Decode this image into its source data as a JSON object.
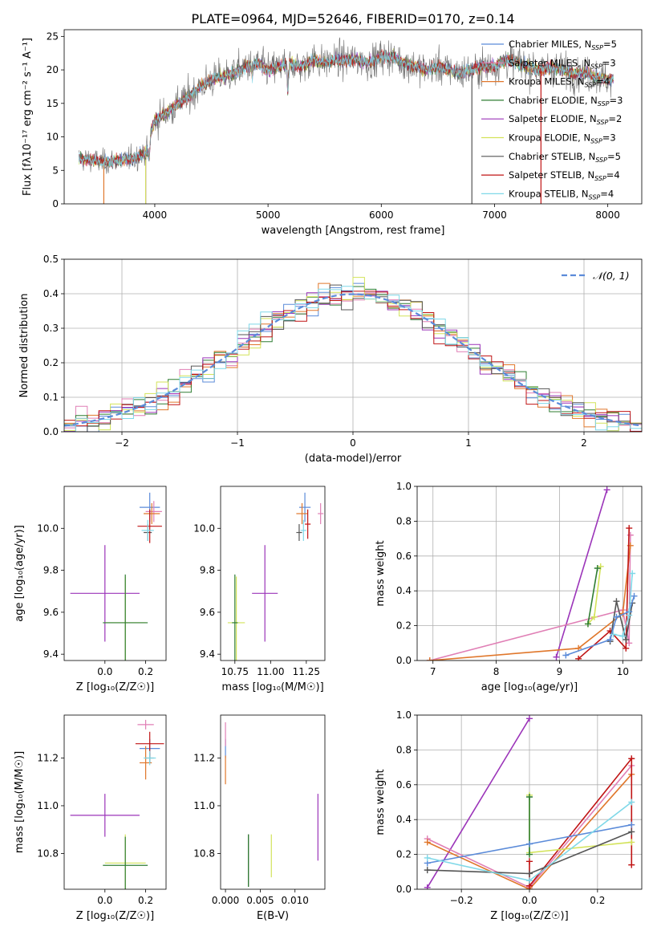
{
  "figure": {
    "title": "PLATE=0964, MJD=52646, FIBERID=0170, z=0.14"
  },
  "chart_data": [
    {
      "id": "spectrum",
      "type": "line",
      "xlabel": "wavelength [Angstrom, rest frame]",
      "ylabel": "Flux [fλ10⁻¹⁷ erg cm⁻² s⁻¹ A⁻¹]",
      "xlim": [
        3200,
        8300
      ],
      "ylim": [
        0,
        26
      ],
      "xticks": [
        4000,
        5000,
        6000,
        7000,
        8000
      ],
      "yticks": [
        0,
        5,
        10,
        15,
        20,
        25
      ],
      "grid": false,
      "legend": "right",
      "continuum": {
        "x": [
          3330,
          3450,
          3550,
          3650,
          3750,
          3850,
          3930,
          3960,
          4000,
          4100,
          4200,
          4300,
          4400,
          4500,
          4600,
          4700,
          4800,
          4900,
          5000,
          5100,
          5200,
          5300,
          5400,
          5500,
          5600,
          5700,
          5800,
          5900,
          6000,
          6100,
          6200,
          6300,
          6400,
          6500,
          6600,
          6700,
          6800,
          6900,
          7000,
          7100,
          7200,
          7300,
          7400,
          7500,
          7600,
          7700,
          7800,
          7900,
          8000,
          8050
        ],
        "y": [
          6.8,
          6.5,
          6.2,
          6.4,
          6.6,
          7.0,
          7.8,
          10.5,
          12.5,
          13.5,
          15.0,
          16.0,
          17.5,
          18.5,
          19.0,
          19.5,
          20.5,
          21.0,
          20.0,
          20.5,
          21.0,
          20.5,
          21.5,
          21.0,
          21.5,
          21.5,
          21.5,
          21.0,
          22.0,
          22.0,
          21.0,
          20.5,
          20.0,
          20.5,
          20.0,
          19.5,
          20.0,
          20.5,
          20.5,
          21.5,
          21.0,
          20.5,
          20.0,
          20.5,
          20.0,
          19.5,
          19.5,
          19.0,
          18.5,
          18.5
        ]
      },
      "series": [
        {
          "name": "Chabrier MILES, N_SSP=5",
          "color": "#5b8bd9"
        },
        {
          "name": "Salpeter MILES, N_SSP=3",
          "color": "#e07fb5"
        },
        {
          "name": "Kroupa MILES, N_SSP=4",
          "color": "#e0772b"
        },
        {
          "name": "Chabrier ELODIE, N_SSP=3",
          "color": "#2f7d32"
        },
        {
          "name": "Salpeter ELODIE, N_SSP=2",
          "color": "#9b34b9"
        },
        {
          "name": "Kroupa ELODIE, N_SSP=3",
          "color": "#d3e35a"
        },
        {
          "name": "Chabrier STELIB, N_SSP=5",
          "color": "#555555"
        },
        {
          "name": "Salpeter STELIB, N_SSP=4",
          "color": "#c01414"
        },
        {
          "name": "Kroupa STELIB, N_SSP=4",
          "color": "#7fd8e8"
        }
      ]
    },
    {
      "id": "residuals",
      "type": "line",
      "xlabel": "(data-model)/error",
      "ylabel": "Normed distribution",
      "xlim": [
        -2.5,
        2.5
      ],
      "ylim": [
        0,
        0.5
      ],
      "xticks": [
        -2,
        -1,
        0,
        1,
        2
      ],
      "yticks": [
        0.0,
        0.1,
        0.2,
        0.3,
        0.4,
        0.5
      ],
      "grid": true,
      "legend": "top-right",
      "gaussian_label": "𝒩(0, 1)",
      "gaussian_color": "#5b8bd9",
      "bin_width": 0.1
    },
    {
      "id": "age-vs-Z",
      "type": "scatter",
      "xlabel": "Z [log₁₀(Z/Z☉)]",
      "ylabel": "age  [log₁₀(age/yr)]",
      "xlim": [
        -0.2,
        0.3
      ],
      "ylim": [
        9.37,
        10.2
      ],
      "xticks": [
        0.0,
        0.2
      ],
      "yticks": [
        9.4,
        9.6,
        9.8,
        10.0
      ],
      "points": [
        {
          "color": "#5b8bd9",
          "x": 0.22,
          "xerr": 0.05,
          "y": 10.1,
          "yerr": 0.07
        },
        {
          "color": "#e07fb5",
          "x": 0.24,
          "xerr": 0.04,
          "y": 10.08,
          "yerr": 0.05
        },
        {
          "color": "#e0772b",
          "x": 0.23,
          "xerr": 0.04,
          "y": 10.07,
          "yerr": 0.05
        },
        {
          "color": "#555555",
          "x": 0.21,
          "xerr": 0.02,
          "y": 9.98,
          "yerr": 0.04
        },
        {
          "color": "#c01414",
          "x": 0.22,
          "xerr": 0.06,
          "y": 10.01,
          "yerr": 0.08
        },
        {
          "color": "#7fd8e8",
          "x": 0.21,
          "xerr": 0.03,
          "y": 9.99,
          "yerr": 0.05
        },
        {
          "color": "#9b34b9",
          "x": 0.0,
          "xerr": 0.17,
          "y": 9.69,
          "yerr": 0.23
        },
        {
          "color": "#d3e35a",
          "x": 0.1,
          "xerr": 0.1,
          "y": 9.55,
          "yerr": 0.22
        },
        {
          "color": "#2f7d32",
          "x": 0.1,
          "xerr": 0.11,
          "y": 9.55,
          "yerr": 0.23
        }
      ]
    },
    {
      "id": "age-vs-mass",
      "type": "scatter",
      "xlabel": "mass [log₁₀(M/M☉)]",
      "ylabel": "",
      "xlim": [
        10.65,
        11.38
      ],
      "ylim": [
        9.37,
        10.2
      ],
      "xticks": [
        10.75,
        11.0,
        11.25
      ],
      "yticks": [
        9.4,
        9.6,
        9.8,
        10.0
      ],
      "points": [
        {
          "color": "#5b8bd9",
          "x": 11.24,
          "xerr": 0.04,
          "y": 10.1,
          "yerr": 0.07
        },
        {
          "color": "#e07fb5",
          "x": 11.35,
          "xerr": 0.02,
          "y": 10.07,
          "yerr": 0.05
        },
        {
          "color": "#e0772b",
          "x": 11.22,
          "xerr": 0.04,
          "y": 10.07,
          "yerr": 0.05
        },
        {
          "color": "#555555",
          "x": 11.2,
          "xerr": 0.02,
          "y": 9.98,
          "yerr": 0.04
        },
        {
          "color": "#c01414",
          "x": 11.26,
          "xerr": 0.02,
          "y": 10.02,
          "yerr": 0.07
        },
        {
          "color": "#7fd8e8",
          "x": 11.23,
          "xerr": 0.02,
          "y": 9.99,
          "yerr": 0.05
        },
        {
          "color": "#9b34b9",
          "x": 10.96,
          "xerr": 0.09,
          "y": 9.69,
          "yerr": 0.23
        },
        {
          "color": "#d3e35a",
          "x": 10.76,
          "xerr": 0.06,
          "y": 9.55,
          "yerr": 0.22
        },
        {
          "color": "#2f7d32",
          "x": 10.75,
          "xerr": 0.02,
          "y": 9.55,
          "yerr": 0.23
        }
      ]
    },
    {
      "id": "weight-vs-age",
      "type": "line",
      "xlabel": "age  [log₁₀(age/yr)]",
      "ylabel": "mass weight",
      "xlim": [
        6.75,
        10.3
      ],
      "ylim": [
        0,
        1.0
      ],
      "xticks": [
        7,
        8,
        9,
        10
      ],
      "yticks": [
        0.0,
        0.2,
        0.4,
        0.6,
        0.8,
        1.0
      ],
      "grid": true,
      "series": [
        {
          "color": "#9b34b9",
          "x": [
            8.95,
            9.75
          ],
          "y": [
            0.02,
            0.98
          ]
        },
        {
          "color": "#e07fb5",
          "x": [
            6.95,
            10.0,
            10.1,
            10.12
          ],
          "y": [
            0.0,
            0.29,
            0.1,
            0.72
          ]
        },
        {
          "color": "#e0772b",
          "x": [
            6.95,
            9.3,
            10.0,
            10.12
          ],
          "y": [
            0.0,
            0.07,
            0.27,
            0.66
          ]
        },
        {
          "color": "#c01414",
          "x": [
            9.3,
            9.8,
            10.05,
            10.1
          ],
          "y": [
            0.01,
            0.17,
            0.07,
            0.76
          ]
        },
        {
          "color": "#d3e35a",
          "x": [
            9.45,
            9.55,
            9.65
          ],
          "y": [
            0.21,
            0.25,
            0.54
          ]
        },
        {
          "color": "#2f7d32",
          "x": [
            9.45,
            9.6
          ],
          "y": [
            0.21,
            0.53
          ]
        },
        {
          "color": "#555555",
          "x": [
            9.8,
            9.9,
            10.05,
            10.15
          ],
          "y": [
            0.11,
            0.34,
            0.12,
            0.33
          ]
        },
        {
          "color": "#5b8bd9",
          "x": [
            9.1,
            9.8,
            9.9,
            10.1,
            10.18
          ],
          "y": [
            0.03,
            0.12,
            0.25,
            0.28,
            0.37
          ]
        },
        {
          "color": "#7fd8e8",
          "x": [
            9.85,
            10.0,
            10.1,
            10.15
          ],
          "y": [
            0.15,
            0.14,
            0.26,
            0.5
          ]
        }
      ]
    },
    {
      "id": "mass-vs-Z",
      "type": "scatter",
      "xlabel": "Z [log₁₀(Z/Z☉)]",
      "ylabel": "mass [log₁₀(M/M☉)]",
      "xlim": [
        -0.2,
        0.3
      ],
      "ylim": [
        10.65,
        11.38
      ],
      "xticks": [
        0.0,
        0.2
      ],
      "yticks": [
        10.8,
        11.0,
        11.2
      ],
      "points": [
        {
          "color": "#5b8bd9",
          "x": 0.22,
          "xerr": 0.05,
          "y": 11.24,
          "yerr": 0.04
        },
        {
          "color": "#e07fb5",
          "x": 0.2,
          "xerr": 0.04,
          "y": 11.34,
          "yerr": 0.02
        },
        {
          "color": "#e0772b",
          "x": 0.2,
          "xerr": 0.03,
          "y": 11.18,
          "yerr": 0.07
        },
        {
          "color": "#555555",
          "x": 0.22,
          "xerr": 0.02,
          "y": 11.2,
          "yerr": 0.02
        },
        {
          "color": "#c01414",
          "x": 0.22,
          "xerr": 0.07,
          "y": 11.26,
          "yerr": 0.05
        },
        {
          "color": "#7fd8e8",
          "x": 0.22,
          "xerr": 0.03,
          "y": 11.2,
          "yerr": 0.03
        },
        {
          "color": "#9b34b9",
          "x": 0.0,
          "xerr": 0.17,
          "y": 10.96,
          "yerr": 0.09
        },
        {
          "color": "#d3e35a",
          "x": 0.1,
          "xerr": 0.1,
          "y": 10.76,
          "yerr": 0.12
        },
        {
          "color": "#2f7d32",
          "x": 0.1,
          "xerr": 0.11,
          "y": 10.75,
          "yerr": 0.12
        }
      ]
    },
    {
      "id": "mass-vs-EBV",
      "type": "scatter",
      "xlabel": "E(B-V)",
      "ylabel": "",
      "xlim": [
        -0.0007,
        0.0143
      ],
      "ylim": [
        10.65,
        11.38
      ],
      "xticks": [
        0.0,
        0.005,
        0.01
      ],
      "tick_labels": [
        "0.000",
        "0.005",
        "0.010"
      ],
      "yticks": [
        10.8,
        11.0,
        11.2
      ],
      "points": [
        {
          "color": "#5b8bd9",
          "x": 0.0,
          "xerr": 0.0,
          "y": 11.24,
          "yerr": 0.04
        },
        {
          "color": "#e07fb5",
          "x": 0.0,
          "xerr": 0.0,
          "y": 11.3,
          "yerr": 0.05
        },
        {
          "color": "#e0772b",
          "x": 0.0,
          "xerr": 0.0,
          "y": 11.15,
          "yerr": 0.06
        },
        {
          "color": "#555555",
          "x": 0.0033,
          "xerr": 0.0,
          "y": 10.77,
          "yerr": 0.11
        },
        {
          "color": "#2f7d32",
          "x": 0.0033,
          "xerr": 0.0,
          "y": 10.77,
          "yerr": 0.11
        },
        {
          "color": "#d3e35a",
          "x": 0.0066,
          "xerr": 0.0,
          "y": 10.79,
          "yerr": 0.09
        },
        {
          "color": "#9b34b9",
          "x": 0.0133,
          "xerr": 0.0,
          "y": 10.91,
          "yerr": 0.14
        }
      ]
    },
    {
      "id": "weight-vs-Z",
      "type": "line",
      "xlabel": "Z [log₁₀(Z/Z☉)]",
      "ylabel": "mass weight",
      "xlim": [
        -0.33,
        0.33
      ],
      "ylim": [
        0,
        1.0
      ],
      "xticks": [
        -0.2,
        0.0,
        0.2
      ],
      "yticks": [
        0.0,
        0.2,
        0.4,
        0.6,
        0.8,
        1.0
      ],
      "grid": true,
      "series": [
        {
          "color": "#9b34b9",
          "x": [
            -0.3,
            0.0
          ],
          "y": [
            0.01,
            0.98
          ]
        },
        {
          "color": "#e07fb5",
          "x": [
            -0.3,
            0.0,
            0.3
          ],
          "y": [
            0.29,
            0.01,
            0.71
          ]
        },
        {
          "color": "#e0772b",
          "x": [
            -0.3,
            0.0,
            0.3
          ],
          "y": [
            0.27,
            0.0,
            0.66
          ]
        },
        {
          "color": "#c01414",
          "x": [
            0.0,
            0.0,
            0.3,
            0.3
          ],
          "y": [
            0.16,
            0.02,
            0.75,
            0.14
          ]
        },
        {
          "color": "#d3e35a",
          "x": [
            0.0,
            0.0,
            0.3
          ],
          "y": [
            0.54,
            0.21,
            0.27
          ]
        },
        {
          "color": "#2f7d32",
          "x": [
            0.0,
            0.0
          ],
          "y": [
            0.53,
            0.2
          ]
        },
        {
          "color": "#555555",
          "x": [
            -0.3,
            0.0,
            0.3
          ],
          "y": [
            0.11,
            0.09,
            0.33
          ]
        },
        {
          "color": "#5b8bd9",
          "x": [
            -0.3,
            0.0,
            0.3
          ],
          "y": [
            0.15,
            0.26,
            0.37
          ]
        },
        {
          "color": "#7fd8e8",
          "x": [
            -0.3,
            0.0,
            0.3
          ],
          "y": [
            0.18,
            0.05,
            0.5
          ]
        }
      ]
    }
  ]
}
